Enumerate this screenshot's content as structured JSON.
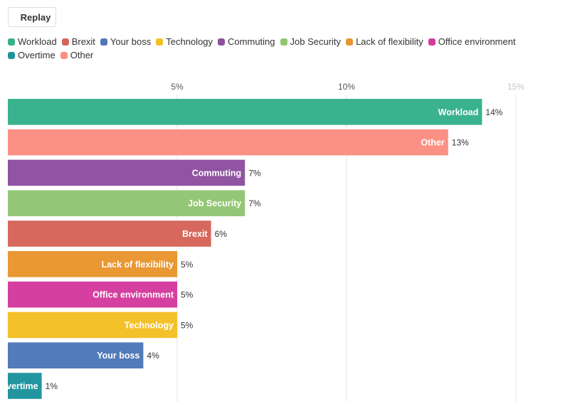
{
  "replay_label": "Replay",
  "legend": [
    {
      "label": "Workload",
      "color": "#36b08b"
    },
    {
      "label": "Brexit",
      "color": "#d5655a"
    },
    {
      "label": "Your boss",
      "color": "#4f78b8"
    },
    {
      "label": "Technology",
      "color": "#f3c026"
    },
    {
      "label": "Commuting",
      "color": "#8e51a0"
    },
    {
      "label": "Job Security",
      "color": "#92c672"
    },
    {
      "label": "Lack of flexibility",
      "color": "#e9962f"
    },
    {
      "label": "Office environment",
      "color": "#d43b9d"
    },
    {
      "label": "Overtime",
      "color": "#1f939d"
    },
    {
      "label": "Other",
      "color": "#fb8f82"
    }
  ],
  "chart_data": {
    "type": "bar",
    "orientation": "horizontal",
    "categories": [
      "Workload",
      "Other",
      "Commuting",
      "Job Security",
      "Brexit",
      "Lack of flexibility",
      "Office environment",
      "Technology",
      "Your boss",
      "Overtime"
    ],
    "values": [
      14,
      13,
      7,
      7,
      6,
      5,
      5,
      5,
      4,
      1
    ],
    "value_labels": [
      "14%",
      "13%",
      "7%",
      "7%",
      "6%",
      "5%",
      "5%",
      "5%",
      "4%",
      "1%"
    ],
    "colors": [
      "#36b08b",
      "#fb8f82",
      "#8e51a0",
      "#92c672",
      "#d5655a",
      "#e9962f",
      "#d43b9d",
      "#f3c026",
      "#4f78b8",
      "#1f939d"
    ],
    "xlim": [
      0,
      15
    ],
    "ticks": [
      5,
      10,
      15
    ],
    "tick_labels": [
      "5%",
      "10%",
      "15%"
    ],
    "grid": true,
    "legend_position": "top"
  }
}
